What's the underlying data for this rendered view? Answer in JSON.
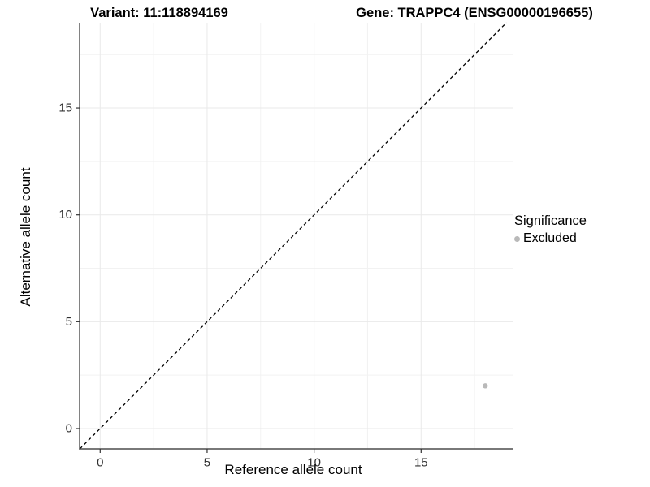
{
  "header": {
    "variant_title": "Variant: 11:118894169",
    "gene_title": "Gene: TRAPPC4 (ENSG00000196655)"
  },
  "axes": {
    "x_label": "Reference allele count",
    "y_label": "Alternative allele count"
  },
  "legend": {
    "title": "Significance",
    "entries": [
      {
        "label": "Excluded",
        "color": "#b9b9b9"
      }
    ]
  },
  "chart_data": {
    "type": "scatter",
    "title_left": "Variant: 11:118894169",
    "title_right": "Gene: TRAPPC4 (ENSG00000196655)",
    "xlabel": "Reference allele count",
    "ylabel": "Alternative allele count",
    "points": [
      {
        "x": 18,
        "y": 2,
        "series": "Excluded",
        "color": "#b9b9b9",
        "radius": 3.2
      }
    ],
    "x_ticks": [
      0,
      5,
      10,
      15
    ],
    "y_ticks": [
      0,
      5,
      10,
      15
    ],
    "minor_grid": [
      2.5,
      7.5,
      12.5,
      17.5
    ],
    "major_grid": [
      0,
      5,
      10,
      15
    ],
    "xlim": [
      -0.96,
      19.28
    ],
    "ylim": [
      -0.95,
      18.99
    ],
    "identity_line": {
      "slope": 1,
      "intercept": 0,
      "style": "dashed",
      "color": "#000000"
    },
    "legend_position": "right",
    "grid": true,
    "colors": {
      "axis_line": "#4d4d4d",
      "tick": "#333333",
      "tick_label": "#303030",
      "major_grid": "#e9e9e9",
      "minor_grid": "#f2f2f2",
      "background": "#ffffff",
      "point": "#b9b9b9"
    }
  }
}
